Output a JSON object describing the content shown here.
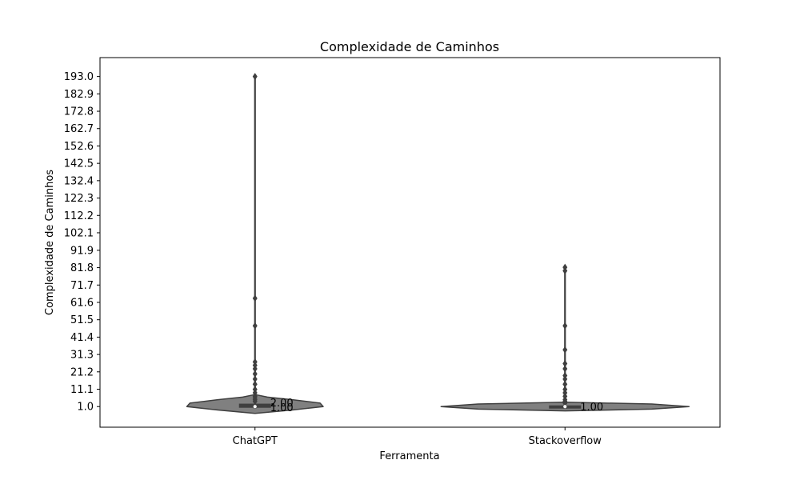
{
  "chart_data": {
    "type": "violin",
    "title": "Complexidade de Caminhos",
    "xlabel": "Ferramenta",
    "ylabel": "Complexidade de Caminhos",
    "categories": [
      "ChatGPT",
      "Stackoverflow"
    ],
    "ylim": [
      -11,
      204
    ],
    "yticks": [
      "1.0",
      "11.1",
      "21.2",
      "31.3",
      "41.4",
      "51.5",
      "61.6",
      "71.7",
      "81.8",
      "91.9",
      "102.1",
      "112.2",
      "122.3",
      "132.4",
      "142.5",
      "152.6",
      "162.7",
      "172.8",
      "182.9",
      "193.0"
    ],
    "grid": false,
    "legend": "none",
    "colors": {
      "violin_fill": "#808080",
      "line": "#3f3f3f",
      "median": "#ffffff"
    },
    "series": [
      {
        "category": "ChatGPT",
        "median": 1,
        "q1": 1,
        "q3": 2,
        "whisker_low": 1,
        "whisker_high": 193,
        "outliers": [
          193,
          64,
          48,
          27,
          25,
          23,
          20,
          17,
          14,
          11,
          9,
          7,
          6,
          5,
          4
        ],
        "annotations": [
          "2.00",
          "1.00"
        ]
      },
      {
        "category": "Stackoverflow",
        "median": 1,
        "q1": 1,
        "q3": 1,
        "whisker_low": 1,
        "whisker_high": 82,
        "outliers": [
          82,
          80,
          48,
          34,
          26,
          23,
          19,
          17,
          14,
          11,
          9,
          7,
          5,
          4,
          3
        ],
        "annotations": [
          "1.00"
        ]
      }
    ]
  }
}
